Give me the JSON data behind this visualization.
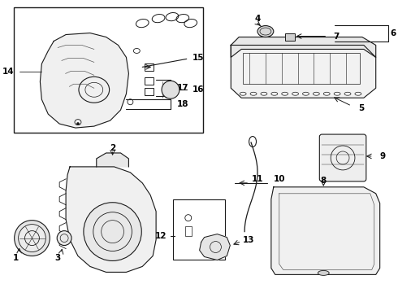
{
  "background_color": "#ffffff",
  "line_color": "#1a1a1a",
  "fig_width": 4.9,
  "fig_height": 3.6,
  "dpi": 100
}
